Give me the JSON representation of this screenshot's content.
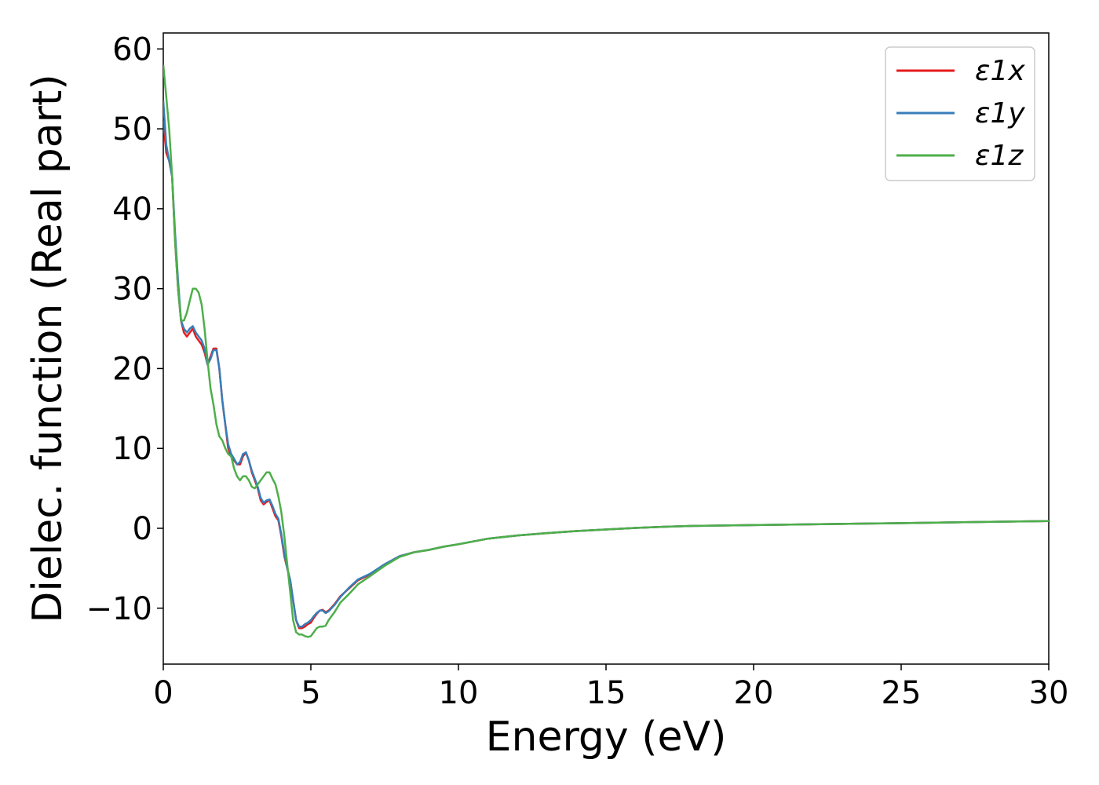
{
  "chart_data": {
    "type": "line",
    "xlabel": "Energy (eV)",
    "ylabel": "Dielec. function (Real part)",
    "xlim": [
      0,
      30
    ],
    "ylim": [
      -17,
      62
    ],
    "xticks": [
      0,
      5,
      10,
      15,
      20,
      25,
      30
    ],
    "xtick_labels": [
      "0",
      "5",
      "10",
      "15",
      "20",
      "25",
      "30"
    ],
    "yticks": [
      -10,
      0,
      10,
      20,
      30,
      40,
      50,
      60
    ],
    "ytick_labels": [
      "−10",
      "0",
      "10",
      "20",
      "30",
      "40",
      "50",
      "60"
    ],
    "grid": false,
    "legend_position": "top-right",
    "series": [
      {
        "name": "ε1x",
        "color": "#e41a1c",
        "x": [
          0,
          0.1,
          0.2,
          0.3,
          0.4,
          0.5,
          0.6,
          0.7,
          0.8,
          0.9,
          1.0,
          1.1,
          1.2,
          1.3,
          1.4,
          1.5,
          1.6,
          1.7,
          1.8,
          1.9,
          2.0,
          2.1,
          2.2,
          2.3,
          2.4,
          2.5,
          2.6,
          2.7,
          2.8,
          2.9,
          3.0,
          3.1,
          3.2,
          3.3,
          3.4,
          3.5,
          3.6,
          3.7,
          3.8,
          3.9,
          4.0,
          4.1,
          4.2,
          4.3,
          4.4,
          4.5,
          4.6,
          4.7,
          4.8,
          4.9,
          5.0,
          5.1,
          5.2,
          5.3,
          5.4,
          5.5,
          5.6,
          5.8,
          6.0,
          6.3,
          6.6,
          7.0,
          7.5,
          8.0,
          8.5,
          9.0,
          9.5,
          10,
          11,
          12,
          13,
          14,
          15,
          16,
          17,
          18,
          20,
          22,
          24,
          26,
          28,
          30
        ],
        "values": [
          51,
          47,
          46,
          44,
          36,
          30,
          26,
          24.5,
          24,
          24.5,
          25,
          24,
          23.5,
          23,
          22,
          20.5,
          21.5,
          22.5,
          22.5,
          20,
          16,
          13,
          10,
          9,
          8.5,
          8,
          8,
          9,
          9.5,
          8.5,
          7,
          6,
          5,
          3.5,
          3,
          3.3,
          3.5,
          2.5,
          1.5,
          1,
          -1,
          -3.5,
          -5,
          -6.5,
          -9,
          -11.5,
          -12.5,
          -12.5,
          -12.3,
          -12,
          -11.8,
          -11.2,
          -10.7,
          -10.3,
          -10.2,
          -10.5,
          -10.3,
          -9.5,
          -8.5,
          -7.5,
          -6.5,
          -5.8,
          -4.5,
          -3.5,
          -3,
          -2.7,
          -2.3,
          -2,
          -1.3,
          -0.9,
          -0.6,
          -0.35,
          -0.15,
          0.05,
          0.2,
          0.3,
          0.4,
          0.5,
          0.6,
          0.7,
          0.8,
          0.9
        ]
      },
      {
        "name": "ε1y",
        "color": "#377eb8",
        "x": [
          0,
          0.1,
          0.2,
          0.3,
          0.4,
          0.5,
          0.6,
          0.7,
          0.8,
          0.9,
          1.0,
          1.1,
          1.2,
          1.3,
          1.4,
          1.5,
          1.6,
          1.7,
          1.8,
          1.9,
          2.0,
          2.1,
          2.2,
          2.3,
          2.4,
          2.5,
          2.6,
          2.7,
          2.8,
          2.9,
          3.0,
          3.1,
          3.2,
          3.3,
          3.4,
          3.5,
          3.6,
          3.7,
          3.8,
          3.9,
          4.0,
          4.1,
          4.2,
          4.3,
          4.4,
          4.5,
          4.6,
          4.7,
          4.8,
          4.9,
          5.0,
          5.1,
          5.2,
          5.3,
          5.4,
          5.5,
          5.6,
          5.8,
          6.0,
          6.3,
          6.6,
          7.0,
          7.5,
          8.0,
          8.5,
          9.0,
          9.5,
          10,
          11,
          12,
          13,
          14,
          15,
          16,
          17,
          18,
          20,
          22,
          24,
          26,
          28,
          30
        ],
        "values": [
          53.5,
          48,
          46,
          44,
          37,
          31,
          26,
          25,
          24.5,
          25,
          25.3,
          24.5,
          24,
          23.5,
          22.5,
          20.5,
          21.2,
          22.3,
          22.3,
          20,
          16,
          13,
          10.5,
          9.3,
          8.7,
          8,
          8.3,
          9.3,
          9.5,
          8.5,
          7.2,
          6.2,
          5.2,
          3.8,
          3.2,
          3.5,
          3.6,
          2.8,
          1.8,
          1.2,
          -0.8,
          -3.2,
          -5,
          -6.5,
          -9,
          -11.5,
          -12.3,
          -12.3,
          -12,
          -11.8,
          -11.5,
          -11,
          -10.6,
          -10.3,
          -10.3,
          -10.6,
          -10.4,
          -9.6,
          -8.6,
          -7.4,
          -6.4,
          -5.7,
          -4.5,
          -3.5,
          -3,
          -2.7,
          -2.3,
          -2,
          -1.3,
          -0.9,
          -0.6,
          -0.35,
          -0.15,
          0.05,
          0.2,
          0.3,
          0.4,
          0.5,
          0.6,
          0.7,
          0.8,
          0.9
        ]
      },
      {
        "name": "ε1z",
        "color": "#4daf4a",
        "x": [
          0,
          0.1,
          0.2,
          0.3,
          0.4,
          0.5,
          0.6,
          0.7,
          0.8,
          0.9,
          1.0,
          1.1,
          1.2,
          1.3,
          1.4,
          1.5,
          1.6,
          1.7,
          1.8,
          1.9,
          2.0,
          2.1,
          2.2,
          2.3,
          2.4,
          2.5,
          2.6,
          2.7,
          2.8,
          2.9,
          3.0,
          3.1,
          3.2,
          3.3,
          3.4,
          3.5,
          3.6,
          3.7,
          3.8,
          3.9,
          4.0,
          4.1,
          4.2,
          4.3,
          4.4,
          4.5,
          4.6,
          4.7,
          4.8,
          4.9,
          5.0,
          5.1,
          5.2,
          5.3,
          5.4,
          5.5,
          5.6,
          5.8,
          6.0,
          6.3,
          6.6,
          7.0,
          7.5,
          8.0,
          8.5,
          9.0,
          9.5,
          10,
          11,
          12,
          13,
          14,
          15,
          16,
          17,
          18,
          20,
          22,
          24,
          26,
          28,
          30
        ],
        "values": [
          58,
          54,
          50,
          44,
          36,
          30,
          26,
          26,
          27,
          28.5,
          30,
          30,
          29.5,
          28,
          25,
          21,
          17.5,
          15.5,
          13,
          11.5,
          11,
          10,
          9.3,
          9,
          7.5,
          6.5,
          6,
          6.5,
          6.5,
          6,
          5.2,
          5,
          5.5,
          6,
          6.5,
          7,
          7,
          6.2,
          5.5,
          4,
          2,
          -1,
          -4.5,
          -8,
          -11.5,
          -13,
          -13.3,
          -13.3,
          -13.5,
          -13.6,
          -13.5,
          -13,
          -12.5,
          -12.3,
          -12.3,
          -12.2,
          -11.5,
          -10.5,
          -9.3,
          -8.2,
          -7,
          -6,
          -4.7,
          -3.6,
          -3,
          -2.7,
          -2.3,
          -2,
          -1.3,
          -0.9,
          -0.6,
          -0.35,
          -0.15,
          0.05,
          0.2,
          0.3,
          0.4,
          0.5,
          0.6,
          0.7,
          0.8,
          0.9
        ]
      }
    ]
  }
}
